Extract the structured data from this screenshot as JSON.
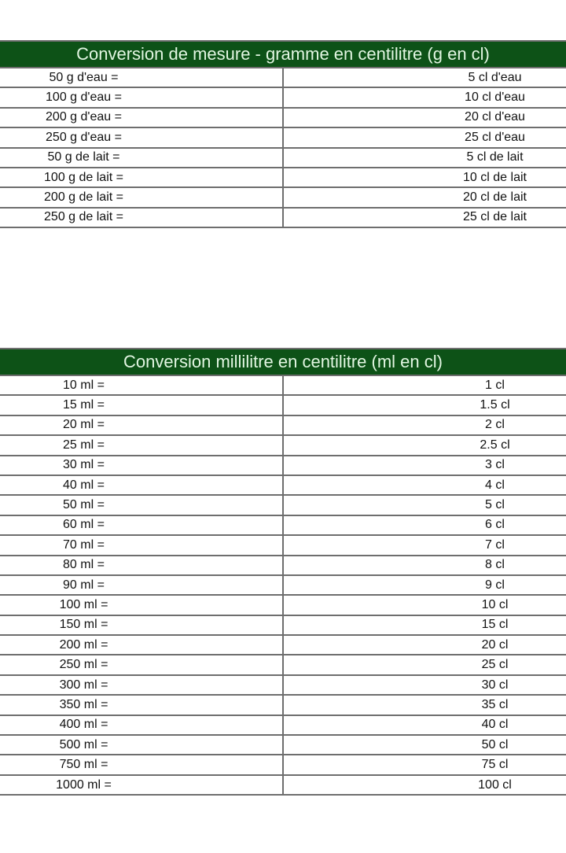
{
  "tables": [
    {
      "title": "Conversion de mesure - gramme en centilitre (g en cl)",
      "rows": [
        [
          "50 g d'eau =",
          "5 cl d'eau"
        ],
        [
          "100 g d'eau =",
          "10 cl d'eau"
        ],
        [
          "200 g d'eau =",
          "20 cl d'eau"
        ],
        [
          "250 g d'eau =",
          "25 cl d'eau"
        ],
        [
          "50 g de lait =",
          "5 cl de lait"
        ],
        [
          "100 g de lait =",
          "10 cl de lait"
        ],
        [
          "200 g de lait =",
          "20 cl de lait"
        ],
        [
          "250 g de lait =",
          "25 cl de lait"
        ]
      ]
    },
    {
      "title": "Conversion millilitre en centilitre (ml en cl)",
      "rows": [
        [
          "10 ml =",
          "1 cl"
        ],
        [
          "15 ml =",
          "1.5 cl"
        ],
        [
          "20 ml =",
          "2 cl"
        ],
        [
          "25 ml =",
          "2.5 cl"
        ],
        [
          "30 ml =",
          "3 cl"
        ],
        [
          "40 ml =",
          "4 cl"
        ],
        [
          "50 ml =",
          "5 cl"
        ],
        [
          "60 ml =",
          "6 cl"
        ],
        [
          "70 ml =",
          "7 cl"
        ],
        [
          "80 ml =",
          "8 cl"
        ],
        [
          "90 ml =",
          "9 cl"
        ],
        [
          "100 ml =",
          "10 cl"
        ],
        [
          "150 ml =",
          "15 cl"
        ],
        [
          "200 ml =",
          "20 cl"
        ],
        [
          "250 ml =",
          "25 cl"
        ],
        [
          "300 ml =",
          "30 cl"
        ],
        [
          "350 ml =",
          "35 cl"
        ],
        [
          "400 ml =",
          "40 cl"
        ],
        [
          "500 ml =",
          "50 cl"
        ],
        [
          "750 ml =",
          "75 cl"
        ],
        [
          "1000 ml =",
          "100 cl"
        ]
      ]
    }
  ],
  "colors": {
    "header_bg": "#0d5217",
    "header_text": "#e2f6e2",
    "border": "#6e6e6e"
  }
}
